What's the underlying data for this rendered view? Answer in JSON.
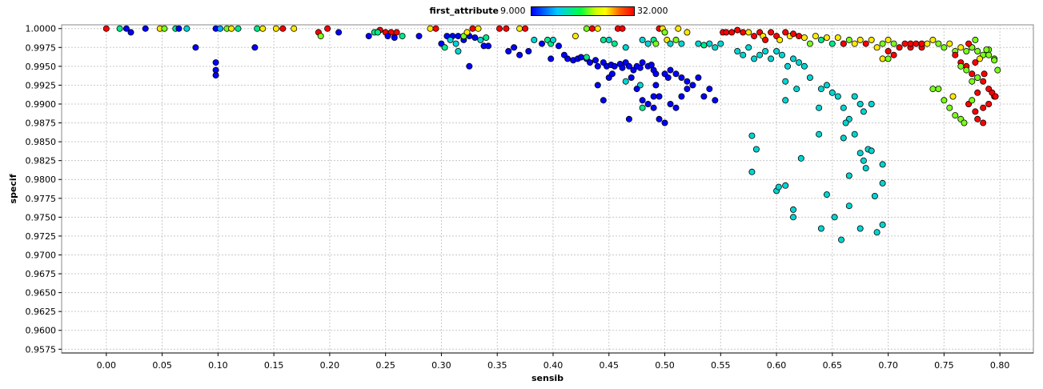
{
  "legend": {
    "title": "first_attribute",
    "min_label": "9.000",
    "max_label": "32.000"
  },
  "chart_data": {
    "type": "scatter",
    "xlabel": "sensib",
    "ylabel": "specif",
    "xlim": [
      -0.04,
      0.83
    ],
    "ylim": [
      0.957,
      1.0005
    ],
    "grid": true,
    "color_attribute": "first_attribute",
    "color_range": [
      9.0,
      32.0
    ],
    "x_ticks": [
      "0.00",
      "0.05",
      "0.10",
      "0.15",
      "0.20",
      "0.25",
      "0.30",
      "0.35",
      "0.40",
      "0.45",
      "0.50",
      "0.55",
      "0.60",
      "0.65",
      "0.70",
      "0.75",
      "0.80"
    ],
    "y_ticks": [
      "0.9575",
      "0.9600",
      "0.9625",
      "0.9650",
      "0.9675",
      "0.9700",
      "0.9725",
      "0.9750",
      "0.9775",
      "0.9800",
      "0.9825",
      "0.9850",
      "0.9875",
      "0.9900",
      "0.9925",
      "0.9950",
      "0.9975",
      "1.0000"
    ],
    "points": [
      [
        0.0,
        1.0,
        32
      ],
      [
        0.012,
        1.0,
        18
      ],
      [
        0.018,
        1.0,
        9
      ],
      [
        0.022,
        0.9995,
        9
      ],
      [
        0.035,
        1.0,
        9
      ],
      [
        0.048,
        1.0,
        26
      ],
      [
        0.052,
        1.0,
        22
      ],
      [
        0.062,
        1.0,
        18
      ],
      [
        0.065,
        1.0,
        9
      ],
      [
        0.072,
        1.0,
        16
      ],
      [
        0.098,
        1.0,
        9
      ],
      [
        0.102,
        1.0,
        14
      ],
      [
        0.108,
        1.0,
        22
      ],
      [
        0.112,
        1.0,
        26
      ],
      [
        0.118,
        1.0,
        18
      ],
      [
        0.135,
        1.0,
        18
      ],
      [
        0.14,
        1.0,
        26
      ],
      [
        0.152,
        1.0,
        26
      ],
      [
        0.158,
        1.0,
        32
      ],
      [
        0.168,
        1.0,
        26
      ],
      [
        0.19,
        0.9995,
        32
      ],
      [
        0.192,
        0.999,
        22
      ],
      [
        0.198,
        1.0,
        32
      ],
      [
        0.208,
        0.9995,
        9
      ],
      [
        0.08,
        0.9975,
        9
      ],
      [
        0.098,
        0.9955,
        9
      ],
      [
        0.098,
        0.9945,
        9
      ],
      [
        0.098,
        0.9938,
        9
      ],
      [
        0.133,
        0.9975,
        9
      ],
      [
        0.24,
        0.9995,
        18
      ],
      [
        0.245,
        0.9998,
        32
      ],
      [
        0.25,
        0.9995,
        32
      ],
      [
        0.255,
        0.9995,
        32
      ],
      [
        0.26,
        0.9995,
        32
      ],
      [
        0.235,
        0.999,
        9
      ],
      [
        0.243,
        0.9995,
        18
      ],
      [
        0.252,
        0.999,
        9
      ],
      [
        0.258,
        0.9988,
        9
      ],
      [
        0.265,
        0.999,
        18
      ],
      [
        0.28,
        0.999,
        9
      ],
      [
        0.29,
        1.0,
        26
      ],
      [
        0.295,
        1.0,
        32
      ],
      [
        0.305,
        0.999,
        9
      ],
      [
        0.31,
        0.999,
        9
      ],
      [
        0.315,
        0.999,
        9
      ],
      [
        0.32,
        0.9985,
        9
      ],
      [
        0.325,
        0.999,
        9
      ],
      [
        0.33,
        0.9988,
        9
      ],
      [
        0.335,
        0.9985,
        16
      ],
      [
        0.34,
        0.9988,
        18
      ],
      [
        0.3,
        0.998,
        9
      ],
      [
        0.303,
        0.9975,
        18
      ],
      [
        0.308,
        0.9985,
        16
      ],
      [
        0.313,
        0.998,
        16
      ],
      [
        0.315,
        0.997,
        16
      ],
      [
        0.32,
        0.999,
        22
      ],
      [
        0.323,
        0.9995,
        26
      ],
      [
        0.328,
        1.0,
        32
      ],
      [
        0.333,
        1.0,
        26
      ],
      [
        0.338,
        0.9977,
        9
      ],
      [
        0.342,
        0.9977,
        9
      ],
      [
        0.325,
        0.995,
        9
      ],
      [
        0.352,
        1.0,
        32
      ],
      [
        0.358,
        1.0,
        32
      ],
      [
        0.37,
        1.0,
        26
      ],
      [
        0.375,
        1.0,
        32
      ],
      [
        0.36,
        0.997,
        9
      ],
      [
        0.365,
        0.9975,
        9
      ],
      [
        0.37,
        0.9965,
        9
      ],
      [
        0.378,
        0.997,
        9
      ],
      [
        0.383,
        0.9985,
        16
      ],
      [
        0.39,
        0.998,
        9
      ],
      [
        0.395,
        0.9985,
        18
      ],
      [
        0.398,
        0.998,
        18
      ],
      [
        0.4,
        0.9985,
        16
      ],
      [
        0.405,
        0.9977,
        9
      ],
      [
        0.398,
        0.996,
        9
      ],
      [
        0.41,
        0.9965,
        9
      ],
      [
        0.413,
        0.996,
        9
      ],
      [
        0.418,
        0.9958,
        9
      ],
      [
        0.422,
        0.996,
        9
      ],
      [
        0.425,
        0.9962,
        9
      ],
      [
        0.43,
        0.996,
        9
      ],
      [
        0.433,
        0.9955,
        9
      ],
      [
        0.438,
        0.9958,
        9
      ],
      [
        0.44,
        0.995,
        9
      ],
      [
        0.445,
        0.9955,
        9
      ],
      [
        0.448,
        0.995,
        9
      ],
      [
        0.452,
        0.9952,
        9
      ],
      [
        0.455,
        0.995,
        9
      ],
      [
        0.46,
        0.9953,
        9
      ],
      [
        0.462,
        0.9948,
        9
      ],
      [
        0.465,
        0.9955,
        9
      ],
      [
        0.468,
        0.995,
        9
      ],
      [
        0.472,
        0.9945,
        9
      ],
      [
        0.475,
        0.995,
        9
      ],
      [
        0.478,
        0.9948,
        9
      ],
      [
        0.48,
        0.9955,
        9
      ],
      [
        0.485,
        0.995,
        9
      ],
      [
        0.488,
        0.9952,
        9
      ],
      [
        0.49,
        0.9945,
        9
      ],
      [
        0.492,
        0.994,
        9
      ],
      [
        0.42,
        0.999,
        26
      ],
      [
        0.43,
        1.0,
        22
      ],
      [
        0.435,
        1.0,
        32
      ],
      [
        0.44,
        1.0,
        26
      ],
      [
        0.445,
        0.9985,
        18
      ],
      [
        0.45,
        0.9985,
        16
      ],
      [
        0.455,
        0.998,
        18
      ],
      [
        0.458,
        1.0,
        32
      ],
      [
        0.462,
        1.0,
        32
      ],
      [
        0.465,
        0.9975,
        16
      ],
      [
        0.48,
        0.9985,
        16
      ],
      [
        0.485,
        0.998,
        16
      ],
      [
        0.49,
        0.9985,
        18
      ],
      [
        0.492,
        0.998,
        22
      ],
      [
        0.495,
        1.0,
        32
      ],
      [
        0.498,
        1.0,
        26
      ],
      [
        0.5,
        0.9995,
        22
      ],
      [
        0.502,
        0.9985,
        26
      ],
      [
        0.505,
        0.998,
        16
      ],
      [
        0.51,
        0.9985,
        22
      ],
      [
        0.512,
        1.0,
        26
      ],
      [
        0.515,
        0.998,
        16
      ],
      [
        0.52,
        0.9995,
        26
      ],
      [
        0.43,
        0.9962,
        18
      ],
      [
        0.465,
        0.993,
        16
      ],
      [
        0.47,
        0.9935,
        9
      ],
      [
        0.478,
        0.9925,
        16
      ],
      [
        0.48,
        0.9895,
        18
      ],
      [
        0.485,
        0.99,
        9
      ],
      [
        0.49,
        0.991,
        9
      ],
      [
        0.492,
        0.9925,
        9
      ],
      [
        0.495,
        0.991,
        9
      ],
      [
        0.5,
        0.994,
        9
      ],
      [
        0.503,
        0.9935,
        9
      ],
      [
        0.505,
        0.9945,
        9
      ],
      [
        0.51,
        0.994,
        9
      ],
      [
        0.515,
        0.9935,
        9
      ],
      [
        0.52,
        0.993,
        9
      ],
      [
        0.525,
        0.9925,
        9
      ],
      [
        0.53,
        0.9935,
        9
      ],
      [
        0.535,
        0.991,
        9
      ],
      [
        0.54,
        0.992,
        9
      ],
      [
        0.545,
        0.9905,
        9
      ],
      [
        0.49,
        0.9895,
        9
      ],
      [
        0.495,
        0.988,
        9
      ],
      [
        0.5,
        0.9875,
        9
      ],
      [
        0.505,
        0.99,
        9
      ],
      [
        0.51,
        0.9895,
        9
      ],
      [
        0.515,
        0.991,
        9
      ],
      [
        0.52,
        0.992,
        9
      ],
      [
        0.468,
        0.988,
        9
      ],
      [
        0.475,
        0.992,
        9
      ],
      [
        0.48,
        0.9905,
        9
      ],
      [
        0.44,
        0.9925,
        9
      ],
      [
        0.445,
        0.9905,
        9
      ],
      [
        0.45,
        0.9935,
        9
      ],
      [
        0.453,
        0.994,
        9
      ],
      [
        0.53,
        0.998,
        16
      ],
      [
        0.535,
        0.9978,
        18
      ],
      [
        0.54,
        0.998,
        16
      ],
      [
        0.545,
        0.9975,
        16
      ],
      [
        0.55,
        0.998,
        16
      ],
      [
        0.552,
        0.9995,
        32
      ],
      [
        0.555,
        0.9995,
        32
      ],
      [
        0.56,
        0.9995,
        32
      ],
      [
        0.565,
        0.9998,
        32
      ],
      [
        0.57,
        0.9995,
        32
      ],
      [
        0.575,
        0.9995,
        26
      ],
      [
        0.58,
        0.999,
        32
      ],
      [
        0.585,
        0.9995,
        32
      ],
      [
        0.588,
        0.999,
        26
      ],
      [
        0.59,
        0.9985,
        32
      ],
      [
        0.595,
        0.9995,
        32
      ],
      [
        0.6,
        0.999,
        32
      ],
      [
        0.603,
        0.9985,
        26
      ],
      [
        0.608,
        0.9995,
        32
      ],
      [
        0.612,
        0.999,
        26
      ],
      [
        0.615,
        0.9993,
        32
      ],
      [
        0.62,
        0.999,
        32
      ],
      [
        0.625,
        0.9988,
        26
      ],
      [
        0.63,
        0.998,
        22
      ],
      [
        0.635,
        0.999,
        26
      ],
      [
        0.64,
        0.9985,
        18
      ],
      [
        0.645,
        0.9988,
        26
      ],
      [
        0.65,
        0.998,
        18
      ],
      [
        0.655,
        0.9988,
        26
      ],
      [
        0.66,
        0.998,
        26
      ],
      [
        0.565,
        0.997,
        16
      ],
      [
        0.57,
        0.9965,
        16
      ],
      [
        0.575,
        0.9975,
        16
      ],
      [
        0.58,
        0.996,
        16
      ],
      [
        0.585,
        0.9965,
        16
      ],
      [
        0.59,
        0.997,
        16
      ],
      [
        0.595,
        0.996,
        16
      ],
      [
        0.6,
        0.997,
        16
      ],
      [
        0.605,
        0.9965,
        16
      ],
      [
        0.61,
        0.995,
        16
      ],
      [
        0.615,
        0.996,
        16
      ],
      [
        0.62,
        0.9955,
        16
      ],
      [
        0.625,
        0.995,
        16
      ],
      [
        0.608,
        0.993,
        16
      ],
      [
        0.618,
        0.992,
        16
      ],
      [
        0.63,
        0.9935,
        16
      ],
      [
        0.64,
        0.992,
        16
      ],
      [
        0.645,
        0.9925,
        16
      ],
      [
        0.65,
        0.9915,
        16
      ],
      [
        0.608,
        0.9905,
        16
      ],
      [
        0.638,
        0.9895,
        16
      ],
      [
        0.655,
        0.991,
        16
      ],
      [
        0.66,
        0.9895,
        16
      ],
      [
        0.665,
        0.988,
        16
      ],
      [
        0.675,
        0.99,
        16
      ],
      [
        0.678,
        0.989,
        16
      ],
      [
        0.685,
        0.99,
        16
      ],
      [
        0.67,
        0.991,
        16
      ],
      [
        0.578,
        0.9858,
        16
      ],
      [
        0.582,
        0.984,
        16
      ],
      [
        0.578,
        0.981,
        16
      ],
      [
        0.6,
        0.9785,
        16
      ],
      [
        0.602,
        0.979,
        16
      ],
      [
        0.608,
        0.9792,
        16
      ],
      [
        0.615,
        0.976,
        16
      ],
      [
        0.615,
        0.975,
        16
      ],
      [
        0.622,
        0.9828,
        16
      ],
      [
        0.638,
        0.986,
        16
      ],
      [
        0.64,
        0.9735,
        16
      ],
      [
        0.645,
        0.978,
        16
      ],
      [
        0.652,
        0.975,
        16
      ],
      [
        0.658,
        0.972,
        16
      ],
      [
        0.66,
        0.9855,
        16
      ],
      [
        0.662,
        0.9875,
        16
      ],
      [
        0.665,
        0.9765,
        16
      ],
      [
        0.67,
        0.986,
        16
      ],
      [
        0.675,
        0.9835,
        16
      ],
      [
        0.678,
        0.9825,
        16
      ],
      [
        0.68,
        0.9815,
        16
      ],
      [
        0.682,
        0.984,
        16
      ],
      [
        0.685,
        0.9838,
        16
      ],
      [
        0.688,
        0.9778,
        16
      ],
      [
        0.69,
        0.973,
        16
      ],
      [
        0.695,
        0.982,
        16
      ],
      [
        0.695,
        0.9795,
        16
      ],
      [
        0.695,
        0.974,
        16
      ],
      [
        0.675,
        0.9735,
        16
      ],
      [
        0.665,
        0.9805,
        16
      ],
      [
        0.66,
        0.998,
        32
      ],
      [
        0.665,
        0.9985,
        22
      ],
      [
        0.67,
        0.998,
        26
      ],
      [
        0.675,
        0.9985,
        26
      ],
      [
        0.68,
        0.998,
        32
      ],
      [
        0.685,
        0.9985,
        26
      ],
      [
        0.69,
        0.9975,
        26
      ],
      [
        0.695,
        0.998,
        22
      ],
      [
        0.7,
        0.9985,
        26
      ],
      [
        0.705,
        0.998,
        22
      ],
      [
        0.71,
        0.9975,
        32
      ],
      [
        0.715,
        0.998,
        32
      ],
      [
        0.72,
        0.9975,
        32
      ],
      [
        0.725,
        0.998,
        32
      ],
      [
        0.73,
        0.9975,
        32
      ],
      [
        0.735,
        0.998,
        26
      ],
      [
        0.74,
        0.9985,
        26
      ],
      [
        0.745,
        0.998,
        22
      ],
      [
        0.75,
        0.9975,
        22
      ],
      [
        0.755,
        0.998,
        26
      ],
      [
        0.76,
        0.997,
        22
      ],
      [
        0.765,
        0.9975,
        26
      ],
      [
        0.77,
        0.997,
        22
      ],
      [
        0.775,
        0.9975,
        22
      ],
      [
        0.78,
        0.997,
        22
      ],
      [
        0.785,
        0.9965,
        22
      ],
      [
        0.79,
        0.9972,
        22
      ],
      [
        0.795,
        0.996,
        22
      ],
      [
        0.7,
        0.997,
        32
      ],
      [
        0.705,
        0.9965,
        32
      ],
      [
        0.72,
        0.998,
        32
      ],
      [
        0.73,
        0.998,
        32
      ],
      [
        0.695,
        0.996,
        26
      ],
      [
        0.7,
        0.996,
        22
      ],
      [
        0.74,
        0.992,
        22
      ],
      [
        0.745,
        0.992,
        22
      ],
      [
        0.75,
        0.9905,
        22
      ],
      [
        0.755,
        0.9895,
        22
      ],
      [
        0.76,
        0.9885,
        22
      ],
      [
        0.765,
        0.988,
        22
      ],
      [
        0.768,
        0.9875,
        22
      ],
      [
        0.772,
        0.99,
        32
      ],
      [
        0.775,
        0.9905,
        22
      ],
      [
        0.778,
        0.989,
        32
      ],
      [
        0.78,
        0.988,
        32
      ],
      [
        0.785,
        0.9875,
        32
      ],
      [
        0.79,
        0.99,
        32
      ],
      [
        0.795,
        0.991,
        32
      ],
      [
        0.785,
        0.9895,
        32
      ],
      [
        0.78,
        0.9915,
        32
      ],
      [
        0.758,
        0.991,
        26
      ],
      [
        0.76,
        0.9965,
        32
      ],
      [
        0.765,
        0.9955,
        32
      ],
      [
        0.77,
        0.995,
        32
      ],
      [
        0.775,
        0.994,
        32
      ],
      [
        0.78,
        0.9935,
        32
      ],
      [
        0.785,
        0.993,
        32
      ],
      [
        0.79,
        0.992,
        32
      ],
      [
        0.793,
        0.9915,
        32
      ],
      [
        0.796,
        0.991,
        32
      ],
      [
        0.765,
        0.995,
        22
      ],
      [
        0.77,
        0.9945,
        22
      ],
      [
        0.775,
        0.993,
        22
      ],
      [
        0.78,
        0.9935,
        22
      ],
      [
        0.79,
        0.9965,
        22
      ],
      [
        0.795,
        0.9958,
        22
      ],
      [
        0.798,
        0.9945,
        22
      ],
      [
        0.775,
        0.9975,
        22
      ],
      [
        0.778,
        0.9985,
        22
      ],
      [
        0.788,
        0.9972,
        22
      ],
      [
        0.782,
        0.996,
        26
      ],
      [
        0.786,
        0.994,
        32
      ],
      [
        0.778,
        0.9955,
        32
      ],
      [
        0.772,
        0.998,
        32
      ]
    ]
  }
}
